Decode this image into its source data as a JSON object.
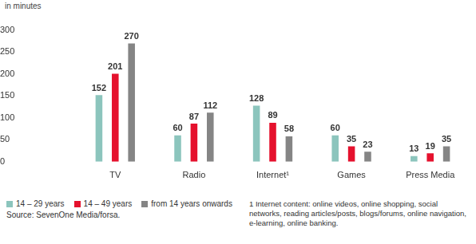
{
  "chart_data": {
    "type": "bar",
    "y_label": "in minutes",
    "categories": [
      "TV",
      "Radio",
      "Internet¹",
      "Games",
      "Press Media"
    ],
    "series": [
      {
        "name": "14 – 29 years",
        "color": "#8cc5bd",
        "values": [
          152,
          60,
          128,
          60,
          13
        ]
      },
      {
        "name": "14 – 49 years",
        "color": "#e5112d",
        "values": [
          201,
          87,
          89,
          35,
          19
        ]
      },
      {
        "name": "from 14 years onwards",
        "color": "#858585",
        "values": [
          270,
          112,
          58,
          23,
          35
        ]
      }
    ],
    "ylim": [
      0,
      300
    ],
    "yticks": [
      0,
      50,
      100,
      150,
      200,
      250,
      300
    ],
    "grid": false,
    "legend": "bottom-left",
    "data_labels": true,
    "annotations": [
      "Source: SevenOne Media/forsa.",
      "1 Internet content: online videos, online shopping, social networks, reading articles/posts, blogs/forums, online navigation, e-learning, online banking."
    ]
  }
}
